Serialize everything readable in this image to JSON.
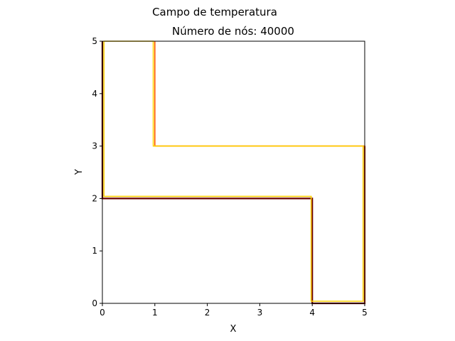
{
  "figure": {
    "suptitle": "Campo de temperatura"
  },
  "chart_data": {
    "type": "line",
    "title": "Número de nós: 40000",
    "xlabel": "X",
    "ylabel": "Y",
    "xlim": [
      0,
      5
    ],
    "ylim": [
      0,
      5
    ],
    "xticks": [
      0,
      1,
      2,
      3,
      4,
      5
    ],
    "yticks": [
      0,
      1,
      2,
      3,
      4,
      5
    ],
    "grid": false,
    "legend": "none",
    "colors": {
      "outer": "#6b0000",
      "mid": "#ff5a00",
      "inner": "#ffd000"
    },
    "series": [
      {
        "color": "#6b0000",
        "points": [
          [
            0,
            5
          ],
          [
            0,
            2
          ],
          [
            4,
            2
          ],
          [
            4,
            0
          ],
          [
            5,
            0
          ],
          [
            5,
            3
          ]
        ]
      },
      {
        "color": "#ff5a00",
        "points": [
          [
            1,
            5
          ],
          [
            1,
            3
          ],
          [
            5,
            3
          ],
          [
            5,
            0
          ]
        ]
      },
      {
        "color": "#ffd000",
        "points": [
          [
            0.03,
            5
          ],
          [
            0.03,
            2.04
          ],
          [
            3.98,
            2.04
          ],
          [
            3.98,
            0.04
          ],
          [
            4.97,
            0.04
          ],
          [
            4.97,
            3
          ],
          [
            0.97,
            3
          ],
          [
            0.97,
            5
          ],
          [
            0.03,
            5
          ]
        ]
      }
    ]
  }
}
